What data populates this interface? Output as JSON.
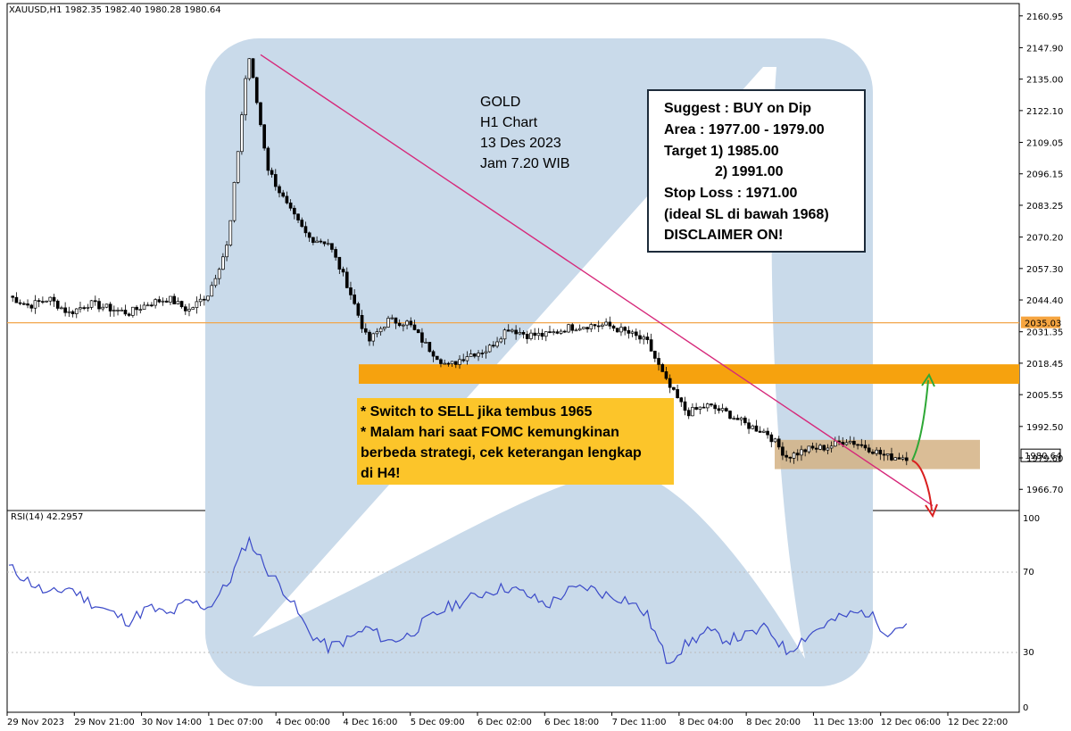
{
  "header": {
    "symbol_text": "XAUUSD,H1  1982.35 1982.40 1980.28 1980.64"
  },
  "price_axis": {
    "ticks": [
      "2160.95",
      "2147.90",
      "2135.00",
      "2122.10",
      "2109.05",
      "2096.15",
      "2083.25",
      "2070.20",
      "2057.30",
      "2044.40",
      "2031.35",
      "2018.45",
      "2005.55",
      "1992.50",
      "1979.60",
      "1966.70"
    ],
    "marker_level": "2035.03",
    "current_price": "1980.64"
  },
  "rsi": {
    "label": "RSI(14) 42.2957",
    "ticks": [
      "100",
      "70",
      "30",
      "0"
    ]
  },
  "time_axis": {
    "ticks": [
      "29 Nov 2023",
      "29 Nov 21:00",
      "30 Nov 14:00",
      "1 Dec 07:00",
      "4 Dec 00:00",
      "4 Dec 16:00",
      "5 Dec 09:00",
      "6 Dec 02:00",
      "6 Dec 18:00",
      "7 Dec 11:00",
      "8 Dec 04:00",
      "8 Dec 20:00",
      "11 Dec 13:00",
      "12 Dec 06:00",
      "12 Dec 22:00"
    ]
  },
  "title_note": [
    "GOLD",
    "H1 Chart",
    "13 Des 2023",
    "Jam 7.20 WIB"
  ],
  "suggest_box": [
    "Suggest : BUY on Dip",
    "Area : 1977.00 - 1979.00",
    "Target 1) 1985.00",
    "2) 1991.00",
    "Stop Loss : 1971.00",
    "(ideal SL di bawah 1968)",
    "DISCLAIMER ON!"
  ],
  "strategy_note": [
    "* Switch to SELL jika tembus 1965",
    "* Malam hari saat FOMC kemungkinan",
    "berbeda strategi, cek keterangan lengkap",
    "di H4!"
  ],
  "colors": {
    "watermark": "#c9daea",
    "trendline": "#d6287a",
    "resistance_band": "#f6a20e",
    "support_band": "#d4b284",
    "note_fill": "#fcc52a",
    "up_arrow": "#2ea836",
    "down_arrow": "#d92020",
    "rsi_line": "#3a49c8",
    "candle": "#000000"
  },
  "chart_data": {
    "type": "candlestick",
    "symbol": "XAUUSD",
    "timeframe": "H1",
    "ylim": [
      1958,
      2166
    ],
    "rsi_ylim": [
      0,
      100
    ],
    "horizontal_line": 2035.03,
    "resistance_zone": [
      2010,
      2018
    ],
    "support_zone": [
      1975,
      1987
    ],
    "trendline": {
      "from": {
        "time": "1 Dec 2023 ~22:00",
        "price": 2145
      },
      "to": {
        "time": "12 Dec 2023 ~22:00",
        "price": 1960
      }
    },
    "ohlc_waypoints": [
      2046,
      2042,
      2045,
      2039,
      2043,
      2041,
      2039,
      2043,
      2045,
      2040,
      2047,
      2068,
      2146,
      2098,
      2082,
      2070,
      2068,
      2050,
      2027,
      2036,
      2035,
      2025,
      2017,
      2022,
      2024,
      2033,
      2030,
      2030,
      2033,
      2034,
      2034,
      2031,
      2027,
      2010,
      1998,
      2001,
      1998,
      1993,
      1990,
      1980,
      1983,
      1984,
      1987,
      1984,
      1980,
      1980
    ],
    "rsi_waypoints": [
      72,
      65,
      58,
      62,
      55,
      50,
      45,
      52,
      48,
      55,
      52,
      64,
      86,
      70,
      58,
      40,
      32,
      36,
      42,
      35,
      38,
      46,
      52,
      56,
      60,
      62,
      58,
      53,
      60,
      62,
      58,
      56,
      48,
      25,
      34,
      40,
      36,
      38,
      42,
      30,
      38,
      44,
      48,
      50,
      40,
      44
    ]
  }
}
